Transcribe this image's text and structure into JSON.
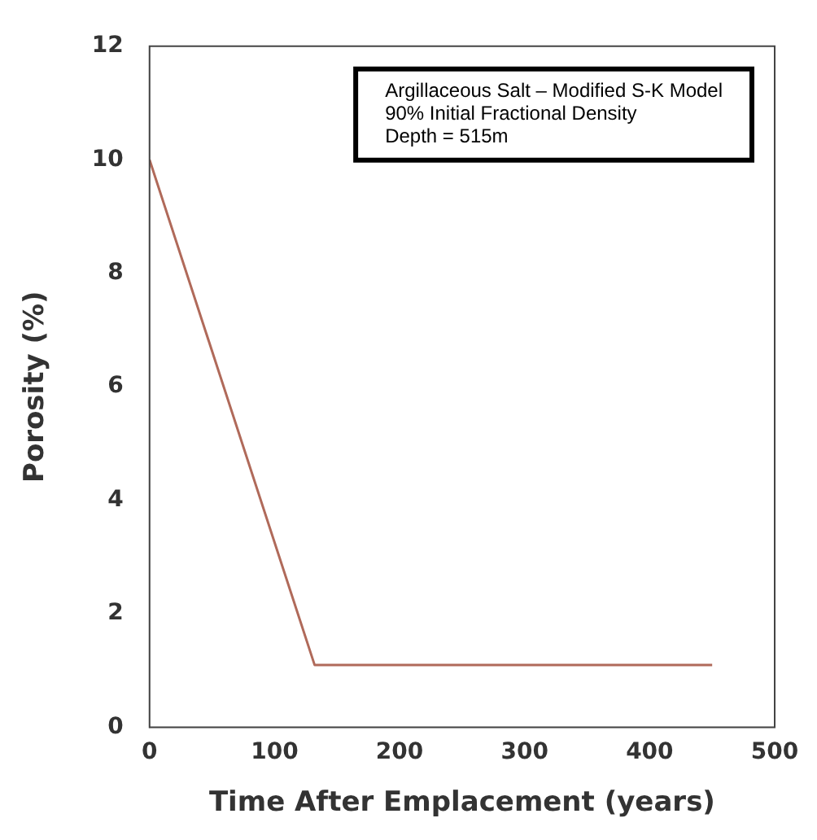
{
  "chart_data": {
    "type": "line",
    "xlabel": "Time After Emplacement (years)",
    "ylabel": "Porosity (%)",
    "annotations": [
      "Argillaceous Salt – Modified S-K Model",
      "90% Initial Fractional Density",
      "Depth = 515m"
    ],
    "series": [
      {
        "color": "#b06a5a",
        "x": [
          0,
          132,
          450
        ],
        "values": [
          10,
          1.1,
          1.1
        ]
      }
    ],
    "xlim": [
      0,
      500
    ],
    "xticks": [
      0,
      100,
      200,
      300,
      400,
      500
    ],
    "ylim": [
      0,
      12
    ],
    "yticks": [
      0,
      2,
      4,
      6,
      8,
      10,
      12
    ],
    "grid": false,
    "legend": false,
    "marker": "none",
    "line_style": "solid"
  }
}
